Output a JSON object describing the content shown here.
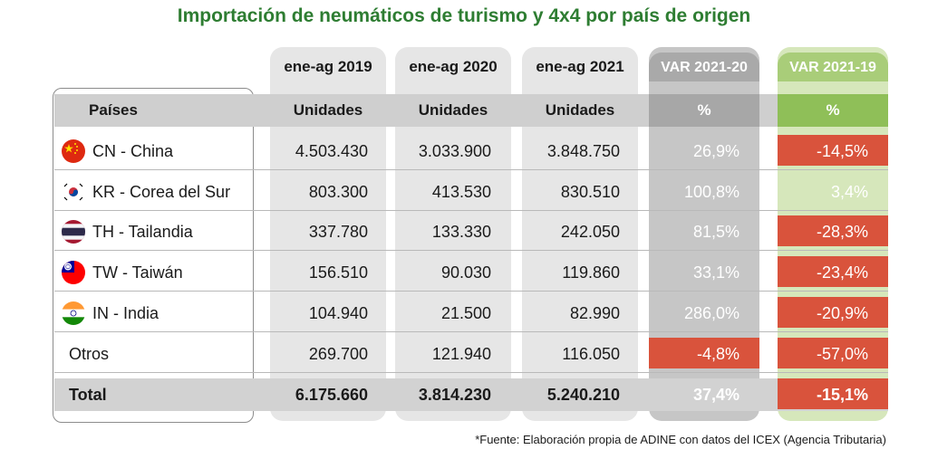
{
  "title": "Importación de neumáticos de turismo y 4x4 por país de origen",
  "source": "*Fuente: Elaboración propia de ADINE con datos del ICEX (Agencia Tributaria)",
  "colors": {
    "title": "#2e7d32",
    "negative": "#d9533c",
    "var2021_20_header": "#a9a9a9",
    "var2021_19_header": "#a9cd79"
  },
  "chart_data": {
    "type": "table",
    "columns": [
      "Países",
      "ene-ag 2019",
      "ene-ag 2020",
      "ene-ag 2021",
      "VAR 2021-20",
      "VAR 2021-19"
    ],
    "units_row": [
      "Países",
      "Unidades",
      "Unidades",
      "Unidades",
      "%",
      "%"
    ],
    "rows": [
      {
        "country": "CN - China",
        "flag": "china-flag-icon",
        "y2019": "4.503.430",
        "y2020": "3.033.900",
        "y2021": "3.848.750",
        "var21_20": "26,9%",
        "var21_19": "-14,5%"
      },
      {
        "country": "KR - Corea del Sur",
        "flag": "south-korea-flag-icon",
        "y2019": "803.300",
        "y2020": "413.530",
        "y2021": "830.510",
        "var21_20": "100,8%",
        "var21_19": "3,4%"
      },
      {
        "country": "TH - Tailandia",
        "flag": "thailand-flag-icon",
        "y2019": "337.780",
        "y2020": "133.330",
        "y2021": "242.050",
        "var21_20": "81,5%",
        "var21_19": "-28,3%"
      },
      {
        "country": "TW - Taiwán",
        "flag": "taiwan-flag-icon",
        "y2019": "156.510",
        "y2020": "90.030",
        "y2021": "119.860",
        "var21_20": "33,1%",
        "var21_19": "-23,4%"
      },
      {
        "country": "IN - India",
        "flag": "india-flag-icon",
        "y2019": "104.940",
        "y2020": "21.500",
        "y2021": "82.990",
        "var21_20": "286,0%",
        "var21_19": "-20,9%"
      },
      {
        "country": "Otros",
        "flag": "",
        "y2019": "269.700",
        "y2020": "121.940",
        "y2021": "116.050",
        "var21_20": "-4,8%",
        "var21_19": "-57,0%"
      }
    ],
    "total": {
      "country": "Total",
      "y2019": "6.175.660",
      "y2020": "3.814.230",
      "y2021": "5.240.210",
      "var21_20": "37,4%",
      "var21_19": "-15,1%"
    }
  }
}
